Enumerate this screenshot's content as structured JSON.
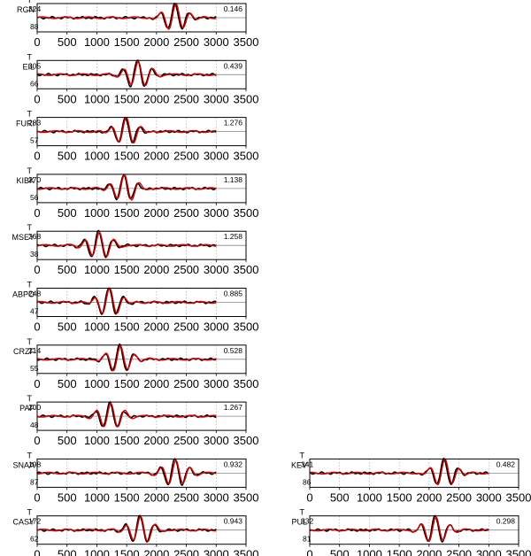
{
  "chart_data": {
    "type": "line",
    "xlim": [
      0,
      3500
    ],
    "xticks": [
      "0",
      "500",
      "1000",
      "1500",
      "2000",
      "2500",
      "3000",
      "3500"
    ],
    "xtick_values": [
      0,
      500,
      1000,
      1500,
      2000,
      2500,
      3000,
      3500
    ],
    "grid": "vertical dotted",
    "colors": {
      "observed": "#000000",
      "synthetic": "#e00000",
      "zero_line": "#888888",
      "grid": "#aaaaaa"
    },
    "panels": [
      {
        "component": "T",
        "station": "RGN",
        "azimuth": "324",
        "distance": "88",
        "amplitude": "0.146",
        "peak_time": 2310,
        "column": "left",
        "row": 0
      },
      {
        "component": "T",
        "station": "EIL",
        "azimuth": "305",
        "distance": "66",
        "amplitude": "0.439",
        "peak_time": 1680,
        "column": "left",
        "row": 1
      },
      {
        "component": "T",
        "station": "FURI",
        "azimuth": "283",
        "distance": "57",
        "amplitude": "1.276",
        "peak_time": 1480,
        "column": "left",
        "row": 2
      },
      {
        "component": "T",
        "station": "KIBK",
        "azimuth": "270",
        "distance": "56",
        "amplitude": "1.138",
        "peak_time": 1450,
        "column": "left",
        "row": 3
      },
      {
        "component": "T",
        "station": "MSEY",
        "azimuth": "268",
        "distance": "38",
        "amplitude": "1.258",
        "peak_time": 1030,
        "column": "left",
        "row": 4
      },
      {
        "component": "T",
        "station": "ABPO",
        "azimuth": "248",
        "distance": "47",
        "amplitude": "0.885",
        "peak_time": 1200,
        "column": "left",
        "row": 5
      },
      {
        "component": "T",
        "station": "CRZF",
        "azimuth": "214",
        "distance": "55",
        "amplitude": "0.528",
        "peak_time": 1380,
        "column": "left",
        "row": 6
      },
      {
        "component": "T",
        "station": "PAF",
        "azimuth": "200",
        "distance": "48",
        "amplitude": "1.267",
        "peak_time": 1220,
        "column": "left",
        "row": 7
      },
      {
        "component": "T",
        "station": "SNAA",
        "azimuth": "198",
        "distance": "87",
        "amplitude": "0.932",
        "peak_time": 2310,
        "column": "left",
        "row": 8
      },
      {
        "component": "T",
        "station": "CASY",
        "azimuth": "172",
        "distance": "62",
        "amplitude": "0.943",
        "peak_time": 1720,
        "column": "left",
        "row": 9
      },
      {
        "component": "T",
        "station": "KEV",
        "azimuth": "341",
        "distance": "86",
        "amplitude": "0.482",
        "peak_time": 2250,
        "column": "right",
        "row": 8
      },
      {
        "component": "T",
        "station": "PUL",
        "azimuth": "332",
        "distance": "81",
        "amplitude": "0.298",
        "peak_time": 2100,
        "column": "right",
        "row": 9
      }
    ]
  }
}
